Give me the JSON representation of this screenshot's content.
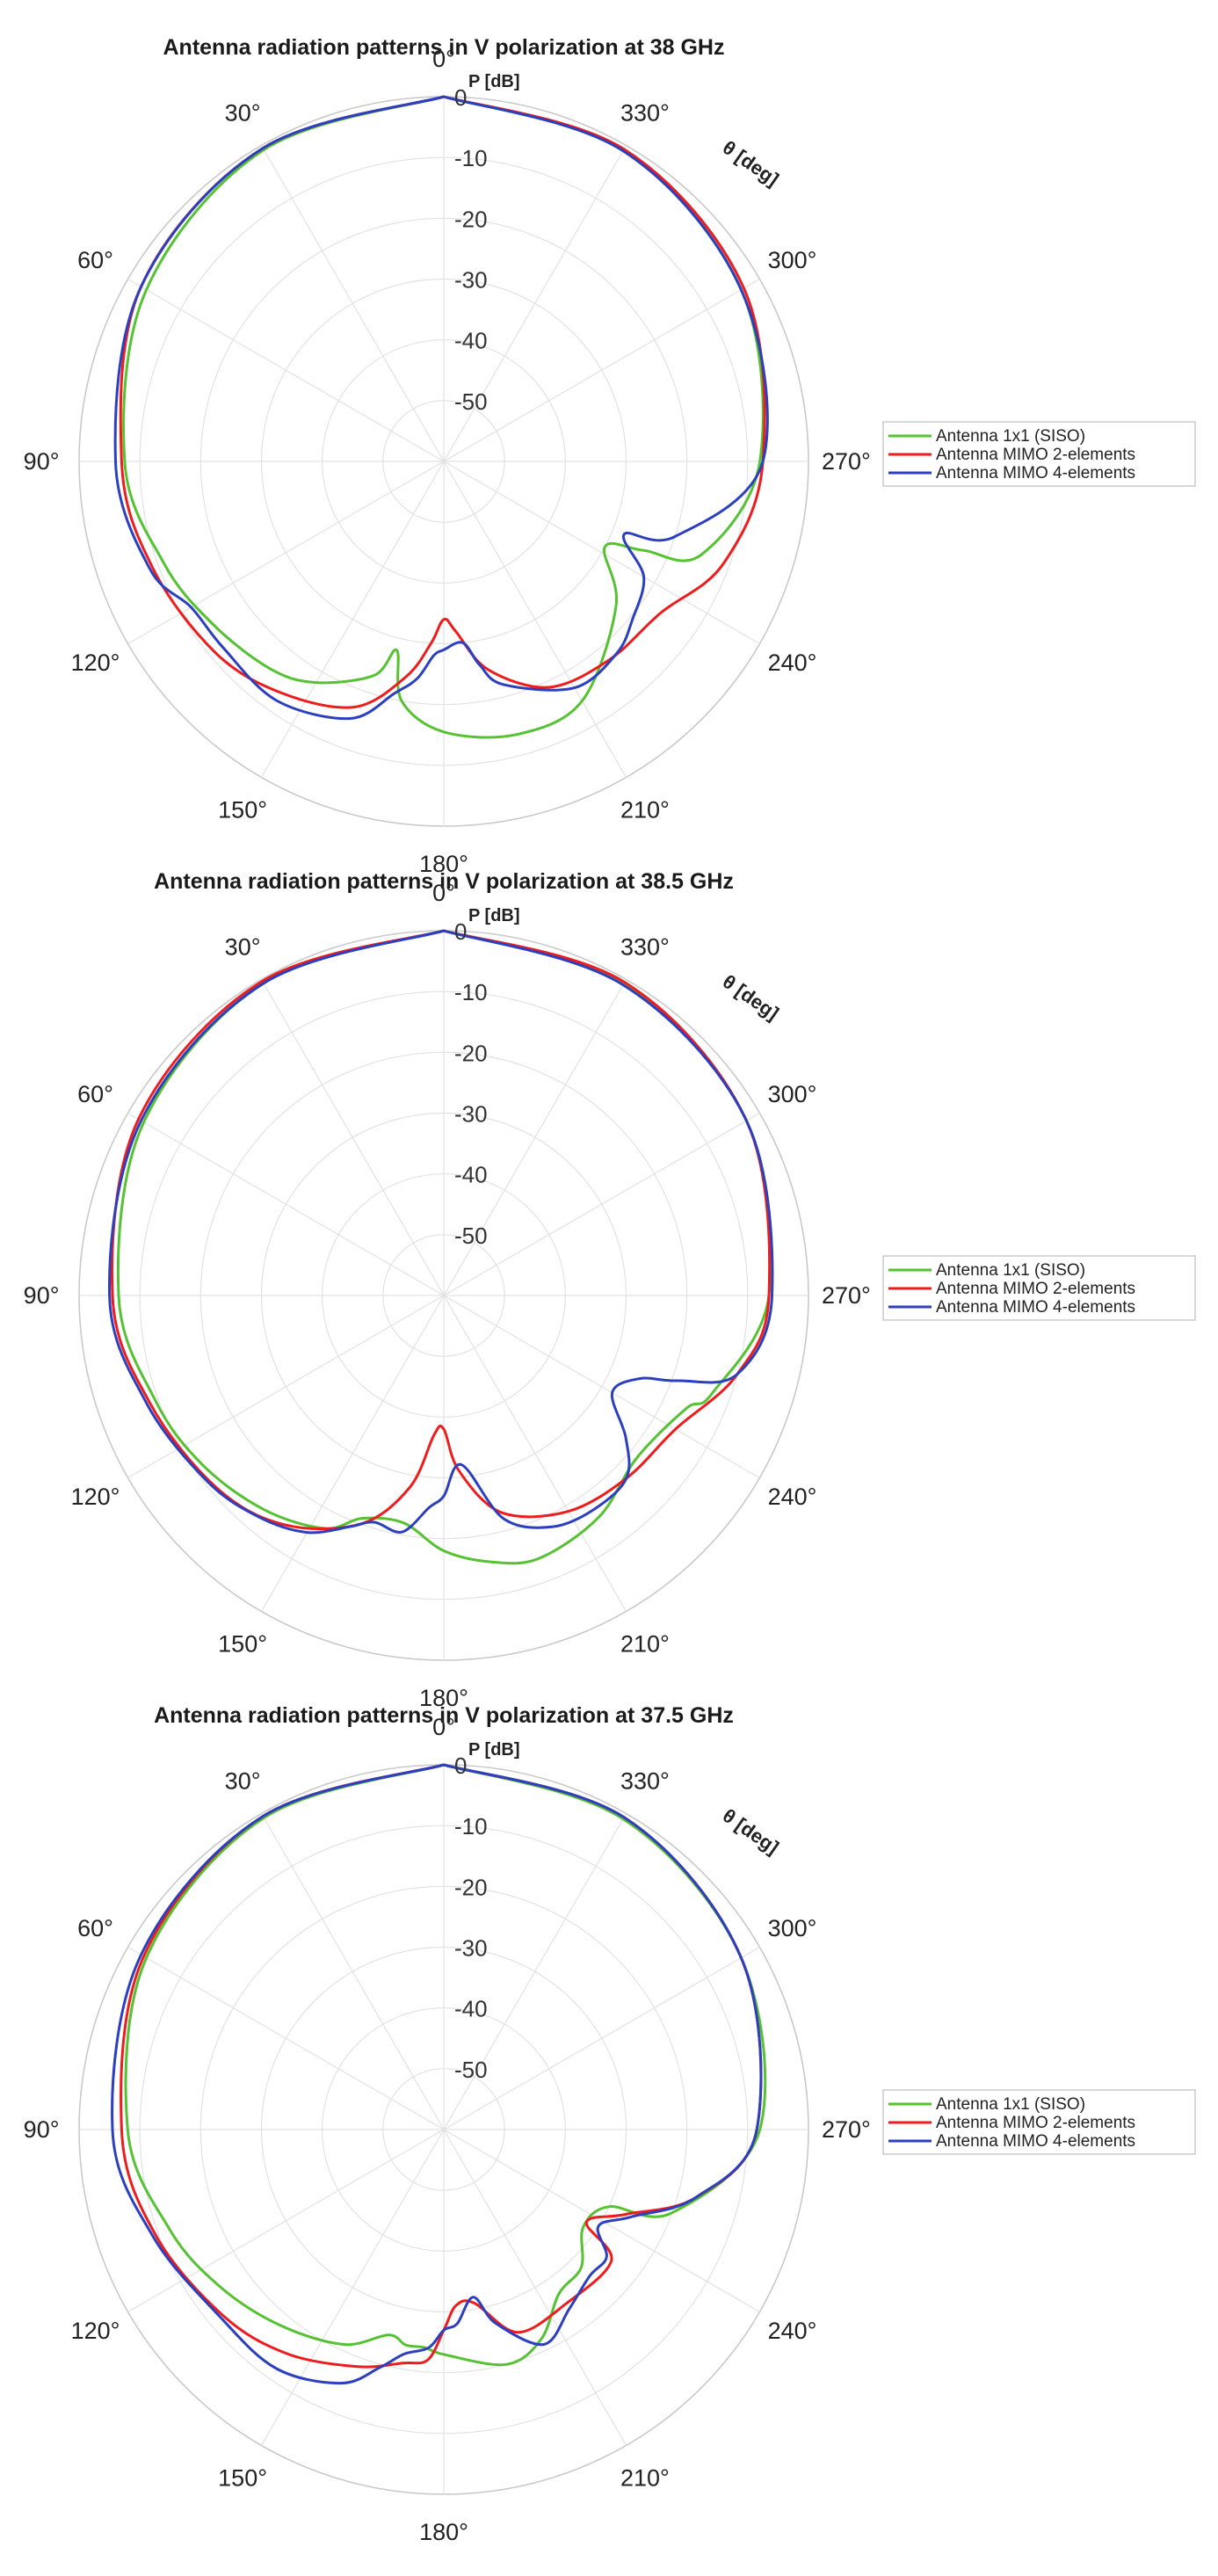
{
  "chart_data": [
    {
      "type": "polar-line",
      "title": "Antenna radiation patterns in V polarization at 38 GHz",
      "r_label": "P [dB]",
      "theta_label": "θ [deg]",
      "r_ticks": [
        "0",
        "-10",
        "-20",
        "-30",
        "-40",
        "-50"
      ],
      "r_range": [
        -60,
        0
      ],
      "theta_ticks": [
        "0°",
        "30°",
        "60°",
        "90°",
        "120°",
        "150°",
        "180°",
        "210°",
        "240°",
        "270°",
        "300°",
        "330°"
      ],
      "theta_direction": "counterclockwise, 0° at top",
      "grid": true,
      "legend_position": "right",
      "colors": {
        "siso": "#55c232",
        "mimo2": "#ee1c1c",
        "mimo4": "#2b3fbf"
      },
      "series": [
        {
          "name": "Antenna 1x1 (SISO)",
          "color": "#55c232",
          "theta": [
            0,
            30,
            60,
            90,
            110,
            125,
            140,
            150,
            162,
            166,
            170,
            180,
            195,
            210,
            230,
            242,
            246,
            250,
            270,
            300,
            330,
            360
          ],
          "r": [
            0,
            -0.8,
            -3.5,
            -7.5,
            -11,
            -13.5,
            -15.5,
            -18,
            -23,
            -28,
            -20,
            -15.5,
            -13.5,
            -14.5,
            -23,
            -30,
            -24,
            -15,
            -8,
            -3.5,
            -1,
            0
          ]
        },
        {
          "name": "Antenna MIMO 2-elements",
          "color": "#ee1c1c",
          "theta": [
            0,
            30,
            60,
            90,
            110,
            130,
            145,
            160,
            170,
            176,
            180,
            184,
            192,
            205,
            220,
            235,
            250,
            270,
            300,
            330,
            360
          ],
          "r": [
            0,
            -0.5,
            -2.5,
            -7,
            -9,
            -11,
            -13.5,
            -17,
            -24,
            -30,
            -34,
            -32,
            -25,
            -19,
            -17.5,
            -16.5,
            -11,
            -7.5,
            -3,
            -0.7,
            0
          ]
        },
        {
          "name": "Antenna MIMO 4-elements",
          "color": "#2b3fbf",
          "theta": [
            0,
            30,
            60,
            90,
            110,
            120,
            130,
            145,
            160,
            168,
            173,
            177,
            180,
            186,
            190,
            195,
            210,
            222,
            230,
            240,
            248,
            252,
            270,
            300,
            330,
            360
          ],
          "r": [
            0,
            -0.5,
            -2.5,
            -6,
            -8.5,
            -12,
            -12.5,
            -12,
            -15,
            -21,
            -24,
            -28,
            -29,
            -30,
            -26,
            -22,
            -17,
            -17.5,
            -19.5,
            -22,
            -28,
            -20,
            -7.5,
            -3.5,
            -1,
            0
          ]
        }
      ]
    },
    {
      "type": "polar-line",
      "title": "Antenna radiation patterns in V polarization at 38.5 GHz",
      "r_label": "P [dB]",
      "theta_label": "θ [deg]",
      "r_ticks": [
        "0",
        "-10",
        "-20",
        "-30",
        "-40",
        "-50"
      ],
      "r_range": [
        -60,
        0
      ],
      "theta_ticks": [
        "0°",
        "30°",
        "60°",
        "90°",
        "120°",
        "150°",
        "180°",
        "210°",
        "240°",
        "270°",
        "300°",
        "330°"
      ],
      "theta_direction": "counterclockwise, 0° at top",
      "grid": true,
      "legend_position": "right",
      "colors": {
        "siso": "#55c232",
        "mimo2": "#ee1c1c",
        "mimo4": "#2b3fbf"
      },
      "series": [
        {
          "name": "Antenna 1x1 (SISO)",
          "color": "#55c232",
          "theta": [
            0,
            30,
            60,
            90,
            110,
            125,
            140,
            153,
            160,
            170,
            180,
            190,
            200,
            215,
            230,
            245,
            250,
            270,
            300,
            330,
            360
          ],
          "r": [
            0,
            -0.7,
            -3,
            -6.5,
            -9.5,
            -11.5,
            -14,
            -17,
            -21,
            -22,
            -18,
            -15.5,
            -14,
            -15.5,
            -18.5,
            -16,
            -13,
            -6.5,
            -2.5,
            -0.7,
            0
          ]
        },
        {
          "name": "Antenna MIMO 2-elements",
          "color": "#ee1c1c",
          "theta": [
            0,
            30,
            60,
            90,
            110,
            130,
            145,
            160,
            170,
            176,
            180,
            185,
            195,
            210,
            225,
            240,
            255,
            270,
            300,
            330,
            360
          ],
          "r": [
            0,
            -0.3,
            -2,
            -5.5,
            -8.5,
            -11,
            -14,
            -20,
            -28,
            -37,
            -38,
            -31,
            -23,
            -19,
            -17.5,
            -16,
            -10,
            -6.5,
            -2.5,
            -0.5,
            0
          ]
        },
        {
          "name": "Antenna MIMO 4-elements",
          "color": "#2b3fbf",
          "theta": [
            0,
            30,
            60,
            90,
            110,
            128,
            140,
            150,
            158,
            163,
            170,
            176,
            180,
            186,
            195,
            205,
            215,
            225,
            232,
            240,
            247,
            250,
            255,
            270,
            300,
            330,
            360
          ],
          "r": [
            0,
            -0.7,
            -2.5,
            -5,
            -8,
            -10.5,
            -12.5,
            -15,
            -19,
            -21,
            -20.5,
            -25,
            -27,
            -32,
            -22,
            -18,
            -17,
            -17.5,
            -22,
            -28,
            -25,
            -19,
            -10,
            -6,
            -2.5,
            -1,
            0
          ]
        }
      ]
    },
    {
      "type": "polar-line",
      "title": "Antenna radiation patterns in V polarization at 37.5 GHz",
      "r_label": "P [dB]",
      "theta_label": "θ [deg]",
      "r_ticks": [
        "0",
        "-10",
        "-20",
        "-30",
        "-40",
        "-50"
      ],
      "r_range": [
        -60,
        0
      ],
      "theta_ticks": [
        "0°",
        "30°",
        "60°",
        "90°",
        "120°",
        "150°",
        "180°",
        "210°",
        "240°",
        "270°",
        "300°",
        "330°"
      ],
      "theta_direction": "counterclockwise, 0° at top",
      "grid": true,
      "legend_position": "right",
      "colors": {
        "siso": "#55c232",
        "mimo2": "#ee1c1c",
        "mimo4": "#2b3fbf"
      },
      "series": [
        {
          "name": "Antenna 1x1 (SISO)",
          "color": "#55c232",
          "theta": [
            0,
            30,
            60,
            90,
            110,
            125,
            140,
            155,
            165,
            170,
            175,
            180,
            195,
            205,
            215,
            225,
            235,
            245,
            250,
            270,
            300,
            330,
            360
          ],
          "r": [
            0,
            -0.8,
            -3.5,
            -8,
            -12,
            -15,
            -18,
            -21,
            -25,
            -24,
            -24,
            -23,
            -20,
            -22,
            -27,
            -28,
            -32,
            -30,
            -20,
            -8,
            -3.5,
            -1,
            0
          ]
        },
        {
          "name": "Antenna MIMO 2-elements",
          "color": "#ee1c1c",
          "theta": [
            0,
            30,
            60,
            90,
            110,
            130,
            145,
            160,
            170,
            176,
            180,
            184,
            190,
            200,
            215,
            232,
            237,
            245,
            255,
            270,
            300,
            330,
            360
          ],
          "r": [
            0,
            -0.5,
            -3,
            -7,
            -9.5,
            -12.5,
            -15,
            -18.5,
            -21,
            -22,
            -27,
            -31,
            -31,
            -24.5,
            -25,
            -25,
            -32,
            -27,
            -17,
            -8.5,
            -3.5,
            -0.7,
            0
          ]
        },
        {
          "name": "Antenna MIMO 4-elements",
          "color": "#2b3fbf",
          "theta": [
            0,
            30,
            60,
            90,
            110,
            130,
            145,
            158,
            165,
            170,
            176,
            180,
            184,
            190,
            195,
            205,
            215,
            225,
            232,
            238,
            245,
            255,
            270,
            300,
            330,
            360
          ],
          "r": [
            0,
            -0.5,
            -2.5,
            -5.5,
            -9,
            -12,
            -12,
            -15,
            -19.5,
            -22.5,
            -24,
            -27,
            -28,
            -32,
            -27,
            -21,
            -24,
            -26,
            -26,
            -30,
            -26,
            -17,
            -8.5,
            -3.5,
            -0.7,
            0
          ]
        }
      ]
    }
  ]
}
